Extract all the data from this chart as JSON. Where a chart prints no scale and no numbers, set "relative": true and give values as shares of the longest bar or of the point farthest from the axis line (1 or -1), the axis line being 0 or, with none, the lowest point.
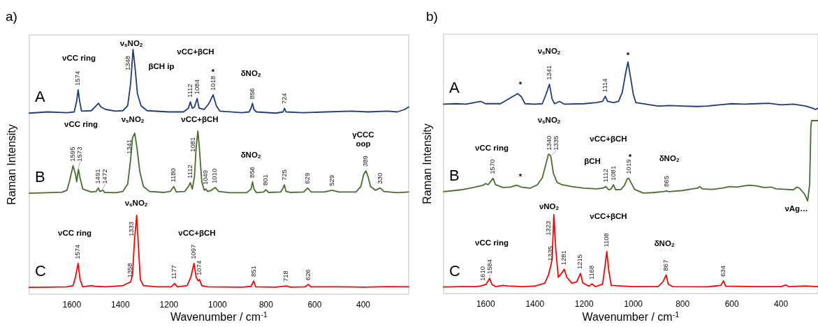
{
  "chart_data": [
    {
      "type": "line",
      "title": "a)",
      "xlabel": "Wavenumber / cm$^{-1}$",
      "ylabel": "Raman Intensity",
      "relative": true,
      "xlim": [
        1775,
        213
      ],
      "xticks": [
        1600,
        1400,
        1200,
        1000,
        800,
        600,
        400
      ],
      "series": [
        {
          "name": "A",
          "color": "#1f3a7a",
          "x": [
            1775,
            1700,
            1620,
            1590,
            1580,
            1574,
            1568,
            1560,
            1520,
            1495,
            1490,
            1480,
            1460,
            1420,
            1390,
            1370,
            1358,
            1348,
            1340,
            1330,
            1315,
            1290,
            1200,
            1140,
            1120,
            1112,
            1104,
            1095,
            1084,
            1076,
            1055,
            1035,
            1018,
            1005,
            990,
            900,
            870,
            862,
            856,
            850,
            840,
            760,
            730,
            724,
            718,
            650,
            550,
            450,
            380,
            300,
            260,
            230,
            213
          ],
          "values": [
            0.74,
            0.745,
            0.742,
            0.745,
            0.79,
            0.835,
            0.79,
            0.748,
            0.75,
            0.775,
            0.78,
            0.765,
            0.755,
            0.748,
            0.75,
            0.77,
            0.86,
            1.0,
            0.93,
            0.82,
            0.77,
            0.75,
            0.745,
            0.745,
            0.76,
            0.786,
            0.76,
            0.765,
            0.8,
            0.76,
            0.755,
            0.78,
            0.815,
            0.77,
            0.748,
            0.742,
            0.745,
            0.76,
            0.78,
            0.755,
            0.745,
            0.74,
            0.745,
            0.76,
            0.745,
            0.742,
            0.745,
            0.748,
            0.745,
            0.748,
            0.745,
            0.755,
            0.765
          ]
        },
        {
          "name": "B",
          "color": "#4a6b2f",
          "x": [
            1775,
            1700,
            1640,
            1620,
            1610,
            1595,
            1585,
            1580,
            1573,
            1565,
            1555,
            1520,
            1500,
            1491,
            1485,
            1472,
            1465,
            1420,
            1390,
            1370,
            1358,
            1350,
            1341,
            1332,
            1320,
            1305,
            1280,
            1220,
            1195,
            1180,
            1170,
            1135,
            1120,
            1112,
            1104,
            1095,
            1088,
            1081,
            1075,
            1065,
            1055,
            1049,
            1040,
            1025,
            1010,
            995,
            950,
            880,
            862,
            856,
            850,
            840,
            810,
            801,
            790,
            740,
            732,
            725,
            718,
            700,
            645,
            629,
            615,
            560,
            529,
            500,
            430,
            410,
            398,
            389,
            380,
            370,
            350,
            330,
            315,
            260,
            213
          ],
          "values": [
            0.413,
            0.415,
            0.417,
            0.425,
            0.46,
            0.525,
            0.49,
            0.46,
            0.51,
            0.47,
            0.43,
            0.418,
            0.42,
            0.434,
            0.42,
            0.425,
            0.416,
            0.415,
            0.42,
            0.45,
            0.55,
            0.64,
            0.658,
            0.6,
            0.5,
            0.44,
            0.42,
            0.416,
            0.42,
            0.44,
            0.418,
            0.42,
            0.44,
            0.456,
            0.43,
            0.48,
            0.6,
            0.667,
            0.6,
            0.46,
            0.425,
            0.43,
            0.42,
            0.425,
            0.436,
            0.42,
            0.415,
            0.415,
            0.43,
            0.459,
            0.43,
            0.415,
            0.418,
            0.427,
            0.416,
            0.418,
            0.43,
            0.447,
            0.42,
            0.416,
            0.418,
            0.434,
            0.418,
            0.418,
            0.425,
            0.418,
            0.418,
            0.44,
            0.49,
            0.504,
            0.48,
            0.44,
            0.425,
            0.434,
            0.42,
            0.415,
            0.418
          ]
        },
        {
          "name": "C",
          "color": "#ff0000",
          "x": [
            1775,
            1700,
            1620,
            1595,
            1585,
            1574,
            1566,
            1555,
            1520,
            1500,
            1460,
            1420,
            1390,
            1370,
            1358,
            1350,
            1342,
            1333,
            1326,
            1318,
            1305,
            1250,
            1190,
            1177,
            1165,
            1125,
            1110,
            1097,
            1088,
            1080,
            1074,
            1065,
            1040,
            900,
            862,
            851,
            843,
            760,
            718,
            700,
            640,
            626,
            615,
            500,
            400,
            300,
            213
          ],
          "values": [
            0.028,
            0.029,
            0.03,
            0.035,
            0.07,
            0.126,
            0.06,
            0.03,
            0.035,
            0.032,
            0.03,
            0.033,
            0.035,
            0.045,
            0.05,
            0.08,
            0.22,
            0.322,
            0.2,
            0.06,
            0.035,
            0.03,
            0.03,
            0.044,
            0.03,
            0.035,
            0.07,
            0.126,
            0.07,
            0.055,
            0.06,
            0.035,
            0.03,
            0.029,
            0.032,
            0.054,
            0.03,
            0.029,
            0.034,
            0.029,
            0.03,
            0.04,
            0.03,
            0.03,
            0.029,
            0.031,
            0.03
          ]
        }
      ],
      "annotations": [
        "νCC ring",
        "ν$_{s}$NO$_{2}$",
        "βCH ip",
        "νCC+βCH",
        "*",
        "δNO$_{2}$",
        "νCC ring",
        "ν$_{s}$NO$_{2}$",
        "νCC+βCH",
        "δNO$_{2}$",
        "γCCC\noop",
        "ν$_{s}$NO$_{2}$",
        "νCC ring",
        "νCC+βCH",
        {
          "text": "1574",
          "x": 1574,
          "y": 0.835
        },
        {
          "text": "1348",
          "x": 1348,
          "y": 1.0
        },
        {
          "text": "1112",
          "x": 1112,
          "y": 0.786
        },
        {
          "text": "1084",
          "x": 1084,
          "y": 0.8
        },
        {
          "text": "1018",
          "x": 1018,
          "y": 0.815
        },
        {
          "text": "856",
          "x": 856,
          "y": 0.78
        },
        {
          "text": "724",
          "x": 724,
          "y": 0.76
        },
        {
          "text": "1595",
          "x": 1595,
          "y": 0.525
        },
        {
          "text": "1573",
          "x": 1573,
          "y": 0.51
        },
        {
          "text": "1491",
          "x": 1491,
          "y": 0.434
        },
        {
          "text": "1472",
          "x": 1472,
          "y": 0.425
        },
        {
          "text": "1341",
          "x": 1341,
          "y": 0.658
        },
        {
          "text": "1180",
          "x": 1180,
          "y": 0.44
        },
        {
          "text": "1112",
          "x": 1112,
          "y": 0.456
        },
        {
          "text": "1081",
          "x": 1081,
          "y": 0.667
        },
        {
          "text": "1049",
          "x": 1049,
          "y": 0.43
        },
        {
          "text": "1010",
          "x": 1010,
          "y": 0.436
        },
        {
          "text": "856",
          "x": 856,
          "y": 0.459
        },
        {
          "text": "801",
          "x": 801,
          "y": 0.427
        },
        {
          "text": "725",
          "x": 725,
          "y": 0.447
        },
        {
          "text": "629",
          "x": 629,
          "y": 0.434
        },
        {
          "text": "529",
          "x": 529,
          "y": 0.425
        },
        {
          "text": "389",
          "x": 389,
          "y": 0.504
        },
        {
          "text": "330",
          "x": 330,
          "y": 0.434
        },
        {
          "text": "1574",
          "x": 1574,
          "y": 0.126
        },
        {
          "text": "1358",
          "x": 1358,
          "y": 0.05
        },
        {
          "text": "1333",
          "x": 1333,
          "y": 0.322
        },
        {
          "text": "1177",
          "x": 1177,
          "y": 0.044
        },
        {
          "text": "1097",
          "x": 1097,
          "y": 0.126
        },
        {
          "text": "1074",
          "x": 1074,
          "y": 0.06
        },
        {
          "text": "851",
          "x": 851,
          "y": 0.054
        },
        {
          "text": "718",
          "x": 718,
          "y": 0.034
        },
        {
          "text": "626",
          "x": 626,
          "y": 0.04
        }
      ]
    },
    {
      "type": "line",
      "title": "b)",
      "xlabel": "Wavenumber / cm$^{-1}$",
      "ylabel": "Raman Intensity",
      "relative": true,
      "xlim": [
        1771,
        250
      ],
      "xticks": [
        1600,
        1400,
        1200,
        1000,
        800,
        600,
        400
      ],
      "series": [
        {
          "name": "A",
          "color": "#1f3a7a",
          "x": [
            1771,
            1720,
            1680,
            1620,
            1600,
            1540,
            1500,
            1470,
            1455,
            1440,
            1400,
            1370,
            1355,
            1341,
            1330,
            1320,
            1300,
            1280,
            1200,
            1150,
            1125,
            1114,
            1105,
            1080,
            1060,
            1045,
            1030,
            1022,
            1014,
            1000,
            990,
            950,
            900,
            850,
            800,
            740,
            700,
            650,
            600,
            550,
            500,
            450,
            400,
            350,
            300,
            270,
            260,
            250
          ],
          "values": [
            0.818,
            0.82,
            0.818,
            0.83,
            0.82,
            0.82,
            0.845,
            0.864,
            0.85,
            0.82,
            0.818,
            0.82,
            0.86,
            0.904,
            0.84,
            0.82,
            0.83,
            0.818,
            0.82,
            0.825,
            0.83,
            0.852,
            0.83,
            0.825,
            0.83,
            0.87,
            0.96,
            1.0,
            0.95,
            0.86,
            0.825,
            0.818,
            0.81,
            0.812,
            0.81,
            0.808,
            0.81,
            0.815,
            0.82,
            0.818,
            0.82,
            0.822,
            0.815,
            0.818,
            0.81,
            0.8,
            0.795,
            0.8
          ]
        },
        {
          "name": "B",
          "color": "#4a6b2f",
          "x": [
            1771,
            1700,
            1650,
            1610,
            1600,
            1590,
            1570,
            1560,
            1530,
            1500,
            1475,
            1455,
            1420,
            1390,
            1370,
            1355,
            1345,
            1340,
            1335,
            1325,
            1310,
            1290,
            1250,
            1200,
            1150,
            1125,
            1112,
            1100,
            1090,
            1081,
            1072,
            1050,
            1035,
            1025,
            1019,
            1010,
            995,
            960,
            920,
            880,
            865,
            855,
            800,
            760,
            740,
            730,
            720,
            680,
            640,
            610,
            580,
            550,
            530,
            500,
            470,
            440,
            420,
            380,
            350,
            335,
            325,
            305,
            292,
            284,
            279,
            276,
            250
          ],
          "values": [
            0.44,
            0.448,
            0.458,
            0.468,
            0.475,
            0.47,
            0.498,
            0.47,
            0.458,
            0.46,
            0.468,
            0.46,
            0.455,
            0.47,
            0.5,
            0.56,
            0.602,
            0.6,
            0.59,
            0.52,
            0.48,
            0.47,
            0.462,
            0.455,
            0.452,
            0.455,
            0.462,
            0.448,
            0.452,
            0.47,
            0.448,
            0.45,
            0.47,
            0.495,
            0.498,
            0.48,
            0.45,
            0.434,
            0.436,
            0.44,
            0.443,
            0.44,
            0.445,
            0.452,
            0.455,
            0.462,
            0.452,
            0.45,
            0.455,
            0.462,
            0.46,
            0.465,
            0.468,
            0.465,
            0.458,
            0.46,
            0.452,
            0.45,
            0.448,
            0.46,
            0.455,
            0.43,
            0.4,
            0.47,
            0.72,
            0.747,
            0.747
          ]
        },
        {
          "name": "C",
          "color": "#ff0000",
          "x": [
            1771,
            1700,
            1640,
            1620,
            1610,
            1598,
            1584,
            1575,
            1560,
            1530,
            1510,
            1450,
            1400,
            1360,
            1345,
            1335,
            1330,
            1323,
            1316,
            1305,
            1290,
            1281,
            1270,
            1250,
            1230,
            1215,
            1205,
            1180,
            1168,
            1155,
            1125,
            1115,
            1108,
            1100,
            1090,
            1000,
            900,
            880,
            867,
            858,
            840,
            700,
            645,
            634,
            625,
            500,
            400,
            380,
            370,
            300,
            250
          ],
          "values": [
            0.028,
            0.03,
            0.03,
            0.033,
            0.036,
            0.04,
            0.066,
            0.04,
            0.03,
            0.035,
            0.033,
            0.03,
            0.032,
            0.045,
            0.08,
            0.123,
            0.15,
            0.341,
            0.2,
            0.07,
            0.09,
            0.105,
            0.07,
            0.045,
            0.05,
            0.087,
            0.045,
            0.032,
            0.042,
            0.03,
            0.04,
            0.12,
            0.182,
            0.1,
            0.035,
            0.03,
            0.03,
            0.05,
            0.08,
            0.04,
            0.03,
            0.029,
            0.035,
            0.055,
            0.032,
            0.03,
            0.03,
            0.037,
            0.03,
            0.033,
            0.03
          ]
        }
      ],
      "annotations": [
        "ν$_{s}$NO$_{2}$",
        "*",
        "*",
        "ν$_{s}$NO$_{2}$",
        "νCC+βCH",
        "νCC ring",
        "βCH",
        "*",
        "*",
        "δNO$_{2}$",
        "νAg…",
        "νNO$_{2}$",
        "νCC+βCH",
        "νCC ring",
        "δNO$_{2}$",
        {
          "text": "1341",
          "x": 1341,
          "y": 0.904
        },
        {
          "text": "1114",
          "x": 1114,
          "y": 0.852
        },
        {
          "text": "1570",
          "x": 1570,
          "y": 0.498
        },
        {
          "text": "1340",
          "x": 1340,
          "y": 0.6
        },
        {
          "text": "1335",
          "x": 1335,
          "y": 0.59
        },
        {
          "text": "1112",
          "x": 1112,
          "y": 0.462
        },
        {
          "text": "1081",
          "x": 1081,
          "y": 0.47
        },
        {
          "text": "1019",
          "x": 1019,
          "y": 0.498
        },
        {
          "text": "865",
          "x": 865,
          "y": 0.443
        },
        {
          "text": "1610",
          "x": 1610,
          "y": 0.036
        },
        {
          "text": "1584",
          "x": 1584,
          "y": 0.066
        },
        {
          "text": "1335",
          "x": 1335,
          "y": 0.123
        },
        {
          "text": "1323",
          "x": 1323,
          "y": 0.341
        },
        {
          "text": "1281",
          "x": 1281,
          "y": 0.105
        },
        {
          "text": "1215",
          "x": 1215,
          "y": 0.087
        },
        {
          "text": "1168",
          "x": 1168,
          "y": 0.042
        },
        {
          "text": "1108",
          "x": 1108,
          "y": 0.182
        },
        {
          "text": "867",
          "x": 867,
          "y": 0.08
        },
        {
          "text": "634",
          "x": 634,
          "y": 0.055
        }
      ]
    }
  ]
}
